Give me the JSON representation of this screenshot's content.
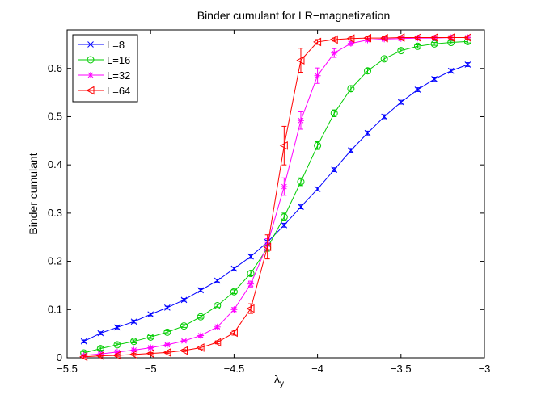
{
  "chart_data": {
    "type": "line",
    "title": "Binder cumulant for LR−magnetization",
    "xlabel": "λ",
    "xlabel_subscript": "y",
    "ylabel": "Binder cumulant",
    "xlim": [
      -5.5,
      -3
    ],
    "ylim": [
      0,
      0.68
    ],
    "xticks": [
      -5.5,
      -5,
      -4.5,
      -4,
      -3.5,
      -3
    ],
    "xtick_labels": [
      "−5.5",
      "−5",
      "−4.5",
      "−4",
      "−3.5",
      "−3"
    ],
    "yticks": [
      0,
      0.1,
      0.2,
      0.3,
      0.4,
      0.5,
      0.6
    ],
    "ytick_labels": [
      "0",
      "0.1",
      "0.2",
      "0.3",
      "0.4",
      "0.5",
      "0.6"
    ],
    "legend_position": "top-left",
    "grid": false,
    "x": [
      -5.4,
      -5.3,
      -5.2,
      -5.1,
      -5.0,
      -4.9,
      -4.8,
      -4.7,
      -4.6,
      -4.5,
      -4.4,
      -4.3,
      -4.2,
      -4.1,
      -4.0,
      -3.9,
      -3.8,
      -3.7,
      -3.6,
      -3.5,
      -3.4,
      -3.3,
      -3.2,
      -3.1
    ],
    "series": [
      {
        "name": "L=8",
        "color": "#0000ff",
        "marker": "x",
        "values": [
          0.034,
          0.051,
          0.063,
          0.075,
          0.09,
          0.104,
          0.12,
          0.14,
          0.16,
          0.185,
          0.21,
          0.24,
          0.275,
          0.313,
          0.35,
          0.39,
          0.43,
          0.466,
          0.5,
          0.53,
          0.556,
          0.578,
          0.595,
          0.608
        ],
        "errors": [
          0.003,
          0.003,
          0.003,
          0.003,
          0.003,
          0.003,
          0.003,
          0.003,
          0.003,
          0.003,
          0.004,
          0.004,
          0.004,
          0.004,
          0.004,
          0.004,
          0.004,
          0.004,
          0.004,
          0.004,
          0.004,
          0.004,
          0.004,
          0.004
        ]
      },
      {
        "name": "L=16",
        "color": "#00cc00",
        "marker": "o",
        "values": [
          0.01,
          0.019,
          0.027,
          0.034,
          0.043,
          0.053,
          0.066,
          0.085,
          0.108,
          0.137,
          0.175,
          0.228,
          0.292,
          0.365,
          0.44,
          0.507,
          0.558,
          0.595,
          0.62,
          0.637,
          0.646,
          0.651,
          0.654,
          0.656
        ],
        "errors": [
          0.003,
          0.003,
          0.003,
          0.003,
          0.003,
          0.003,
          0.003,
          0.003,
          0.003,
          0.004,
          0.005,
          0.007,
          0.008,
          0.008,
          0.008,
          0.007,
          0.006,
          0.005,
          0.004,
          0.003,
          0.003,
          0.003,
          0.003,
          0.003
        ]
      },
      {
        "name": "L=32",
        "color": "#ff00ff",
        "marker": "*",
        "values": [
          0.005,
          0.008,
          0.012,
          0.016,
          0.021,
          0.027,
          0.035,
          0.046,
          0.064,
          0.1,
          0.153,
          0.235,
          0.355,
          0.492,
          0.585,
          0.632,
          0.652,
          0.659,
          0.661,
          0.662,
          0.663,
          0.663,
          0.664,
          0.664
        ],
        "errors": [
          0.002,
          0.002,
          0.002,
          0.002,
          0.002,
          0.002,
          0.002,
          0.003,
          0.003,
          0.004,
          0.006,
          0.012,
          0.018,
          0.018,
          0.016,
          0.009,
          0.004,
          0.003,
          0.003,
          0.003,
          0.003,
          0.003,
          0.003,
          0.003
        ]
      },
      {
        "name": "L=64",
        "color": "#ff0000",
        "marker": "<",
        "values": [
          0.002,
          0.004,
          0.005,
          0.007,
          0.009,
          0.011,
          0.015,
          0.021,
          0.032,
          0.052,
          0.102,
          0.23,
          0.44,
          0.617,
          0.655,
          0.66,
          0.662,
          0.663,
          0.663,
          0.664,
          0.664,
          0.664,
          0.664,
          0.664
        ],
        "errors": [
          0.002,
          0.002,
          0.002,
          0.002,
          0.002,
          0.002,
          0.002,
          0.003,
          0.003,
          0.005,
          0.01,
          0.025,
          0.04,
          0.025,
          0.005,
          0.003,
          0.003,
          0.003,
          0.003,
          0.003,
          0.003,
          0.003,
          0.003,
          0.003
        ]
      }
    ]
  }
}
